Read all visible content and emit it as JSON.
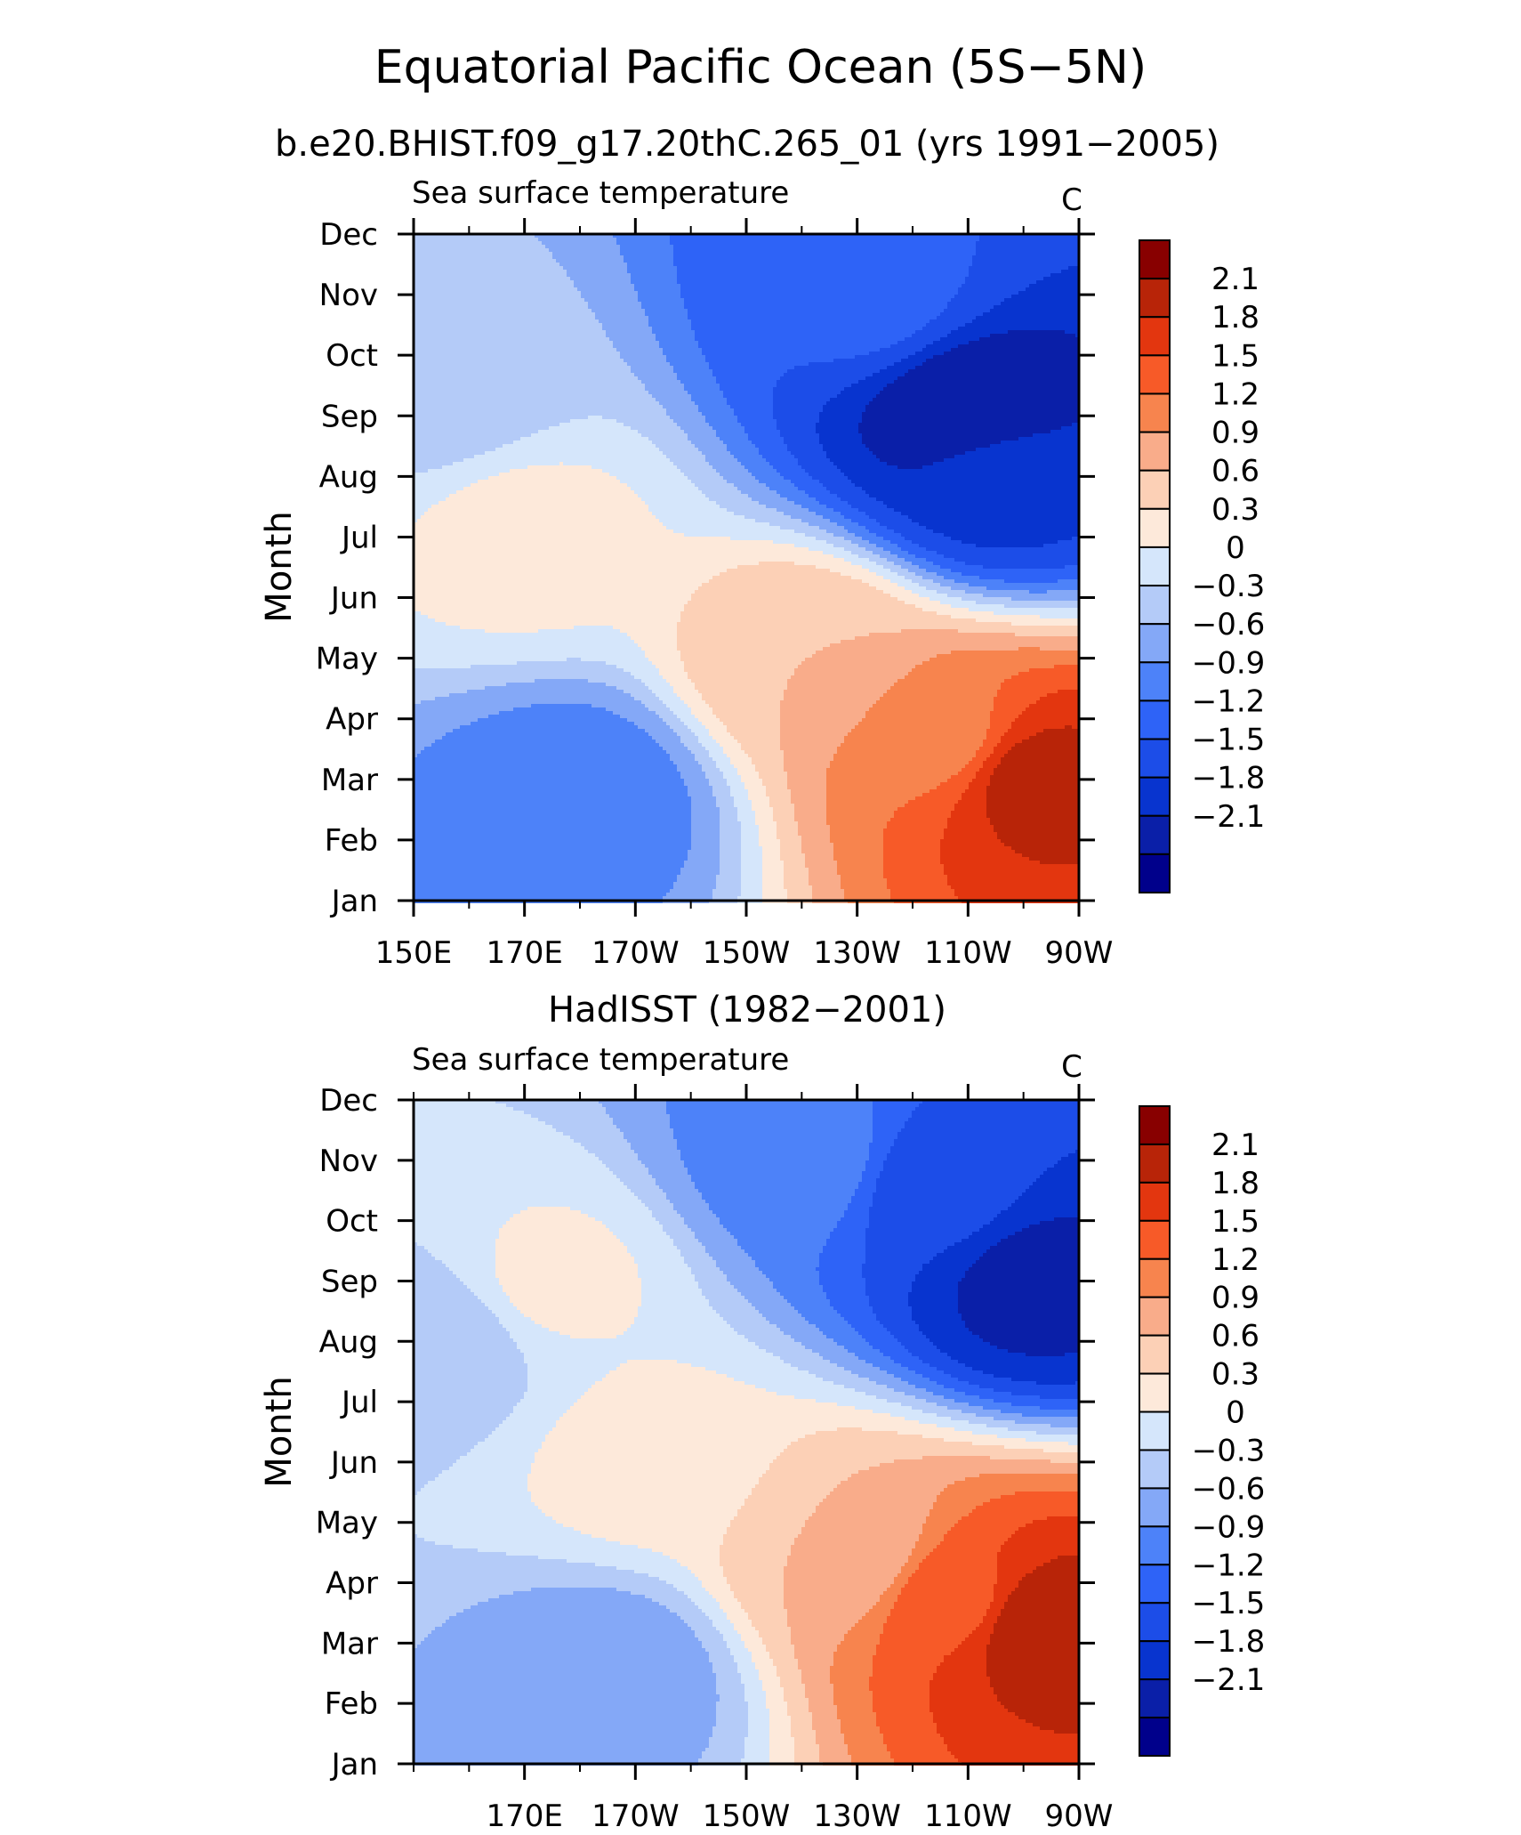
{
  "title": "Equatorial Pacific Ocean (5S−5N)",
  "colors": {
    "levels": [
      "#00008b",
      "#0a1fa8",
      "#0834cf",
      "#1c4de8",
      "#2e63f7",
      "#4d82f9",
      "#84a8f7",
      "#b4cbf8",
      "#d5e6fb",
      "#fde9da",
      "#fcd0b6",
      "#f9ac8a",
      "#f7844e",
      "#f75a28",
      "#e3360f",
      "#b82408",
      "#880000"
    ],
    "separator": "#ffffff"
  },
  "chart_data": [
    {
      "type": "heatmap",
      "panel_title": "b.e20.BHIST.f09_g17.20thC.265_01 (yrs 1991−2005)",
      "subtitle": "Sea surface temperature",
      "units": "C",
      "ylabel": "Month",
      "xlabel": "",
      "x_ticks": [
        "150E",
        "170E",
        "170W",
        "150W",
        "130W",
        "110W",
        "90W"
      ],
      "x_tick_values": [
        150,
        170,
        190,
        210,
        230,
        250,
        270
      ],
      "xlim": [
        150,
        270
      ],
      "y_ticks": [
        "Jan",
        "Feb",
        "Mar",
        "Apr",
        "May",
        "Jun",
        "Jul",
        "Aug",
        "Sep",
        "Oct",
        "Nov",
        "Dec"
      ],
      "colorbar_labels": [
        "2.1",
        "1.8",
        "1.5",
        "1.2",
        "0.9",
        "0.6",
        "0.3",
        "0",
        "−0.3",
        "−0.6",
        "−0.9",
        "−1.2",
        "−1.5",
        "−1.8",
        "−2.1"
      ],
      "levels": [
        -2.1,
        -1.8,
        -1.5,
        -1.2,
        -0.9,
        -0.6,
        -0.3,
        0,
        0.3,
        0.6,
        0.9,
        1.2,
        1.5,
        1.8,
        2.1
      ],
      "features": [
        {
          "lon": 262,
          "month": 3,
          "value": 2.2
        },
        {
          "lon": 245,
          "month": 3.7,
          "value": 1.4
        },
        {
          "lon": 222,
          "month": 5,
          "value": 0.9
        },
        {
          "lon": 170,
          "month": 7,
          "value": 0.4
        },
        {
          "lon": 250,
          "month": 9,
          "value": -2.1
        },
        {
          "lon": 255,
          "month": 8,
          "value": -1.6
        },
        {
          "lon": 232,
          "month": 11,
          "value": -1.1
        },
        {
          "lon": 180,
          "month": 2.7,
          "value": -0.8
        },
        {
          "lon": 155,
          "month": 9.5,
          "value": -0.2
        }
      ]
    },
    {
      "type": "heatmap",
      "panel_title": "HadISST (1982−2001)",
      "subtitle": "Sea surface temperature",
      "units": "C",
      "ylabel": "Month",
      "xlabel": "",
      "x_ticks": [
        "170E",
        "170W",
        "150W",
        "130W",
        "110W",
        "90W"
      ],
      "x_tick_values": [
        170,
        190,
        210,
        230,
        250,
        270
      ],
      "xlim": [
        150,
        270
      ],
      "y_ticks": [
        "Jan",
        "Feb",
        "Mar",
        "Apr",
        "May",
        "Jun",
        "Jul",
        "Aug",
        "Sep",
        "Oct",
        "Nov",
        "Dec"
      ],
      "colorbar_labels": [
        "2.1",
        "1.8",
        "1.5",
        "1.2",
        "0.9",
        "0.6",
        "0.3",
        "0",
        "−0.3",
        "−0.6",
        "−0.9",
        "−1.2",
        "−1.5",
        "−1.8",
        "−2.1"
      ],
      "levels": [
        -2.1,
        -1.8,
        -1.5,
        -1.2,
        -0.9,
        -0.6,
        -0.3,
        0,
        0.3,
        0.6,
        0.9,
        1.2,
        1.5,
        1.8,
        2.1
      ],
      "features": [
        {
          "lon": 262,
          "month": 3.3,
          "value": 2.3
        },
        {
          "lon": 248,
          "month": 3.7,
          "value": 1.7
        },
        {
          "lon": 228,
          "month": 4.5,
          "value": 0.9
        },
        {
          "lon": 192,
          "month": 6,
          "value": 0.4
        },
        {
          "lon": 175,
          "month": 9,
          "value": 0.35
        },
        {
          "lon": 262,
          "month": 9,
          "value": -1.9
        },
        {
          "lon": 245,
          "month": 10.5,
          "value": -1.4
        },
        {
          "lon": 220,
          "month": 11,
          "value": -0.7
        },
        {
          "lon": 185,
          "month": 2.5,
          "value": -0.5
        },
        {
          "lon": 155,
          "month": 8,
          "value": -0.2
        }
      ]
    }
  ]
}
